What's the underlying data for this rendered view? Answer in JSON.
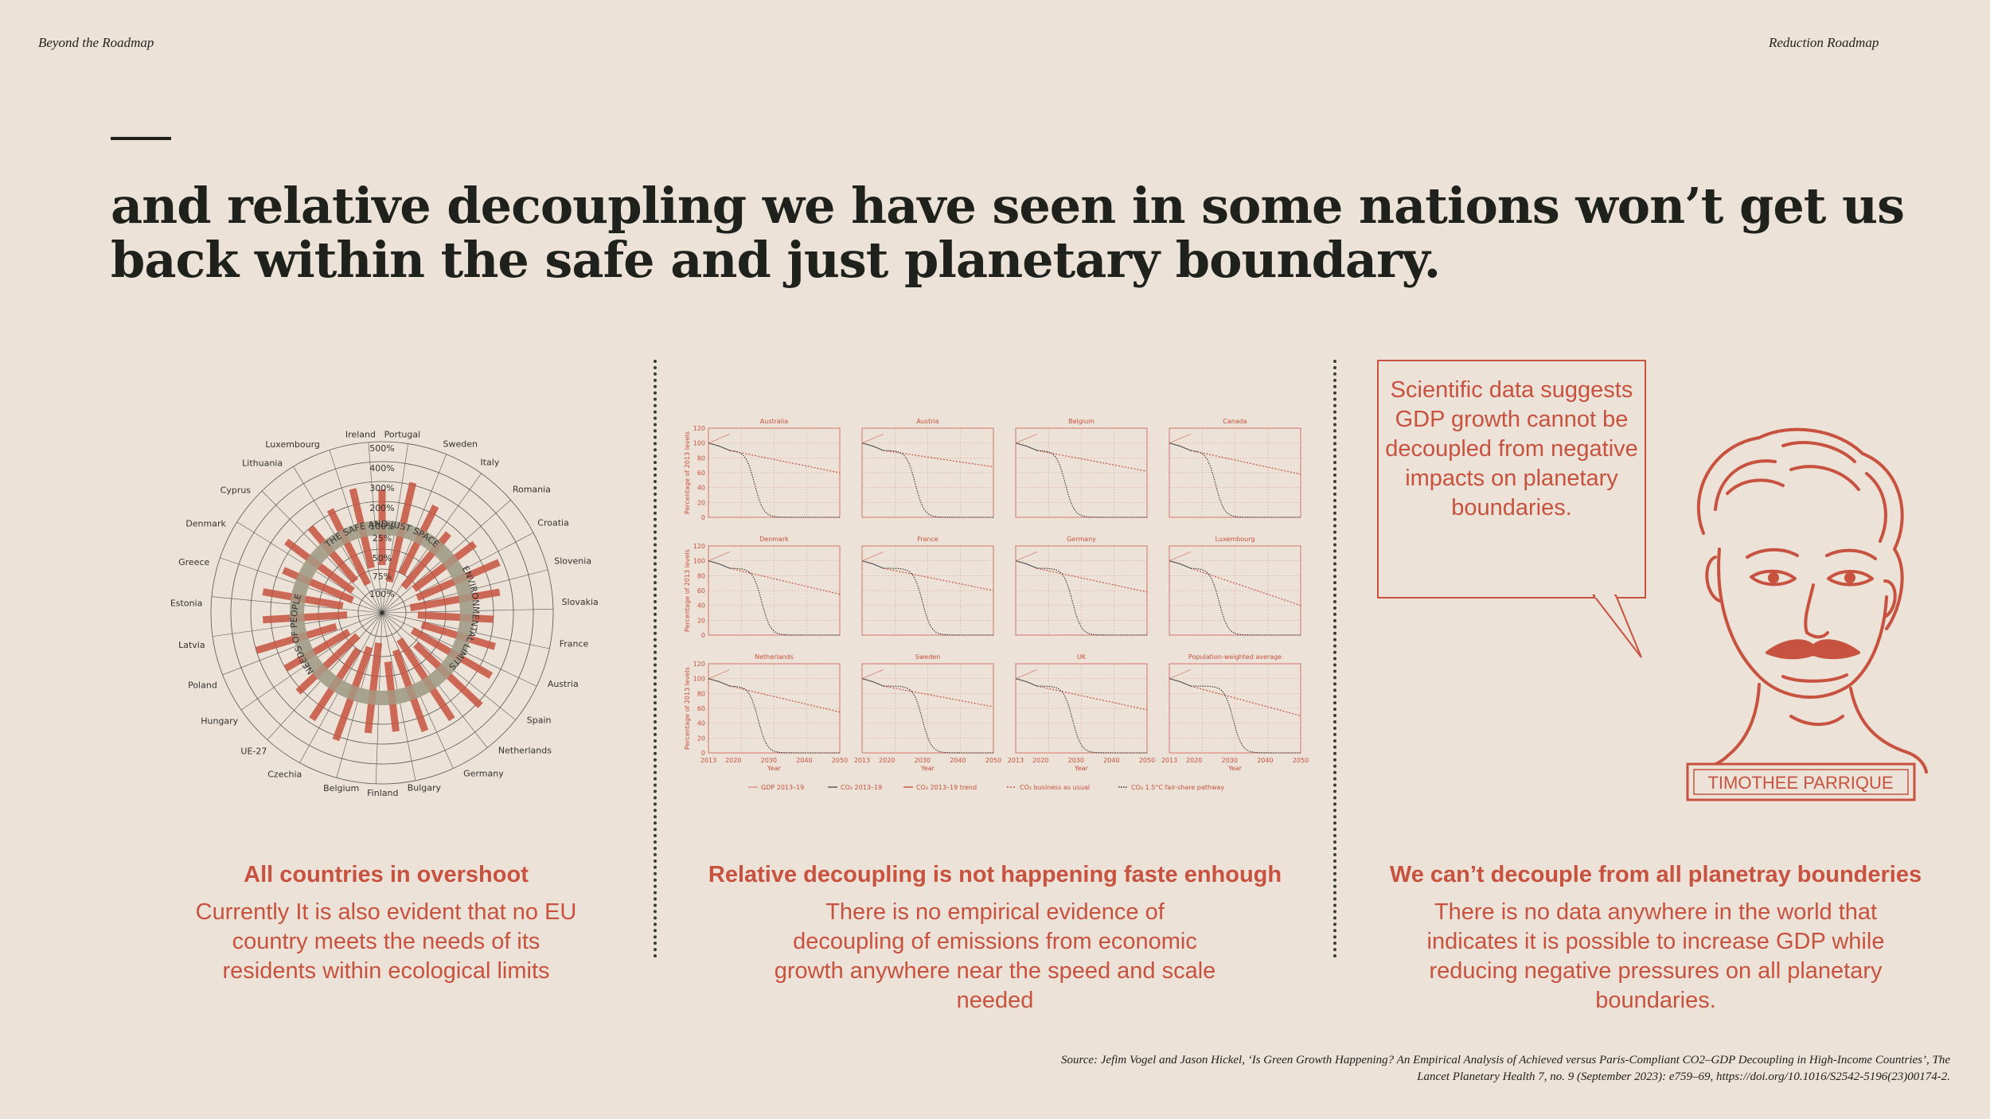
{
  "header": {
    "left": "Beyond the Roadmap",
    "right": "Reduction Roadmap"
  },
  "headline": "and relative decoupling we have seen in some nations won’t get us back within the safe and just planetary boundary.",
  "columns": [
    {
      "title": "All countries in overshoot",
      "body": "Currently It is also evident that no EU country meets the needs of its residents within ecological limits"
    },
    {
      "title": "Relative decoupling is not happening faste enhough",
      "body": "There is no empirical evidence of decoupling of emissions from economic growth anywhere near the speed and scale needed"
    },
    {
      "title": "We can’t decouple from all planetray bounderies",
      "body": "There is no data anywhere in the world that indicates it is possible to increase GDP while reducing negative pressures on all planetary boundaries."
    }
  ],
  "speech_bubble": "Scientific data suggests GDP growth cannot be decoupled from negative impacts on planetary boundaries.",
  "portrait": {
    "name": "TIMOTHEE PARRIQUE"
  },
  "source": "Source: Jefim Vogel and Jason Hickel, ‘Is Green Growth Happening? An Empirical Analysis of Achieved versus Paris-Compliant CO2–GDP Decoupling in High-Income Countries’, The Lancet Planetary Health 7, no. 9 (September 2023): e759–69, https://doi.org/10.1016/S2542-5196(23)00174-2.",
  "radial": {
    "ring_labels": [
      "500%",
      "400%",
      "300%",
      "200%",
      "100%",
      "25%",
      "50%",
      "75%",
      "100%"
    ],
    "arc_labels": {
      "ceiling": "THE SAFE AND JUST SPACE",
      "right": "ENVIRONMENTAL LIMITS",
      "left": "NEEDS OF PEOPLE"
    },
    "countries": [
      "Ireland",
      "Portugal",
      "Sweden",
      "Italy",
      "Romania",
      "Croatia",
      "Slovenia",
      "Slovakia",
      "France",
      "Austria",
      "Spain",
      "Netherlands",
      "Germany",
      "Bulgary",
      "Finland",
      "Belgium",
      "Czechia",
      "UE-27",
      "Hungary",
      "Poland",
      "Latvia",
      "Estonia",
      "Greece",
      "Denmark",
      "Cyprus",
      "Lithuania",
      "Luxembourg"
    ],
    "colors": {
      "bar": "#c7523f",
      "band": "#a7a38e",
      "grid": "#555"
    }
  },
  "small_multiples": {
    "panels": [
      "Australia",
      "Austria",
      "Belgium",
      "Canada",
      "Denmark",
      "France",
      "Germany",
      "Luxembourg",
      "Netherlands",
      "Sweden",
      "UK",
      "Population-weighted average"
    ],
    "y_ticks": [
      "0",
      "20",
      "40",
      "60",
      "80",
      "100",
      "120"
    ],
    "x_ticks": [
      "2013",
      "2020",
      "2030",
      "2040",
      "2050"
    ],
    "x_label": "Year",
    "y_label": "Percentage of 2013 levels",
    "legend": [
      "GDP 2013–19",
      "CO₂ 2013–19",
      "CO₂ 2013–19 trend",
      "CO₂ business as usual",
      "CO₂ 1.5°C fair-share pathway"
    ]
  }
}
